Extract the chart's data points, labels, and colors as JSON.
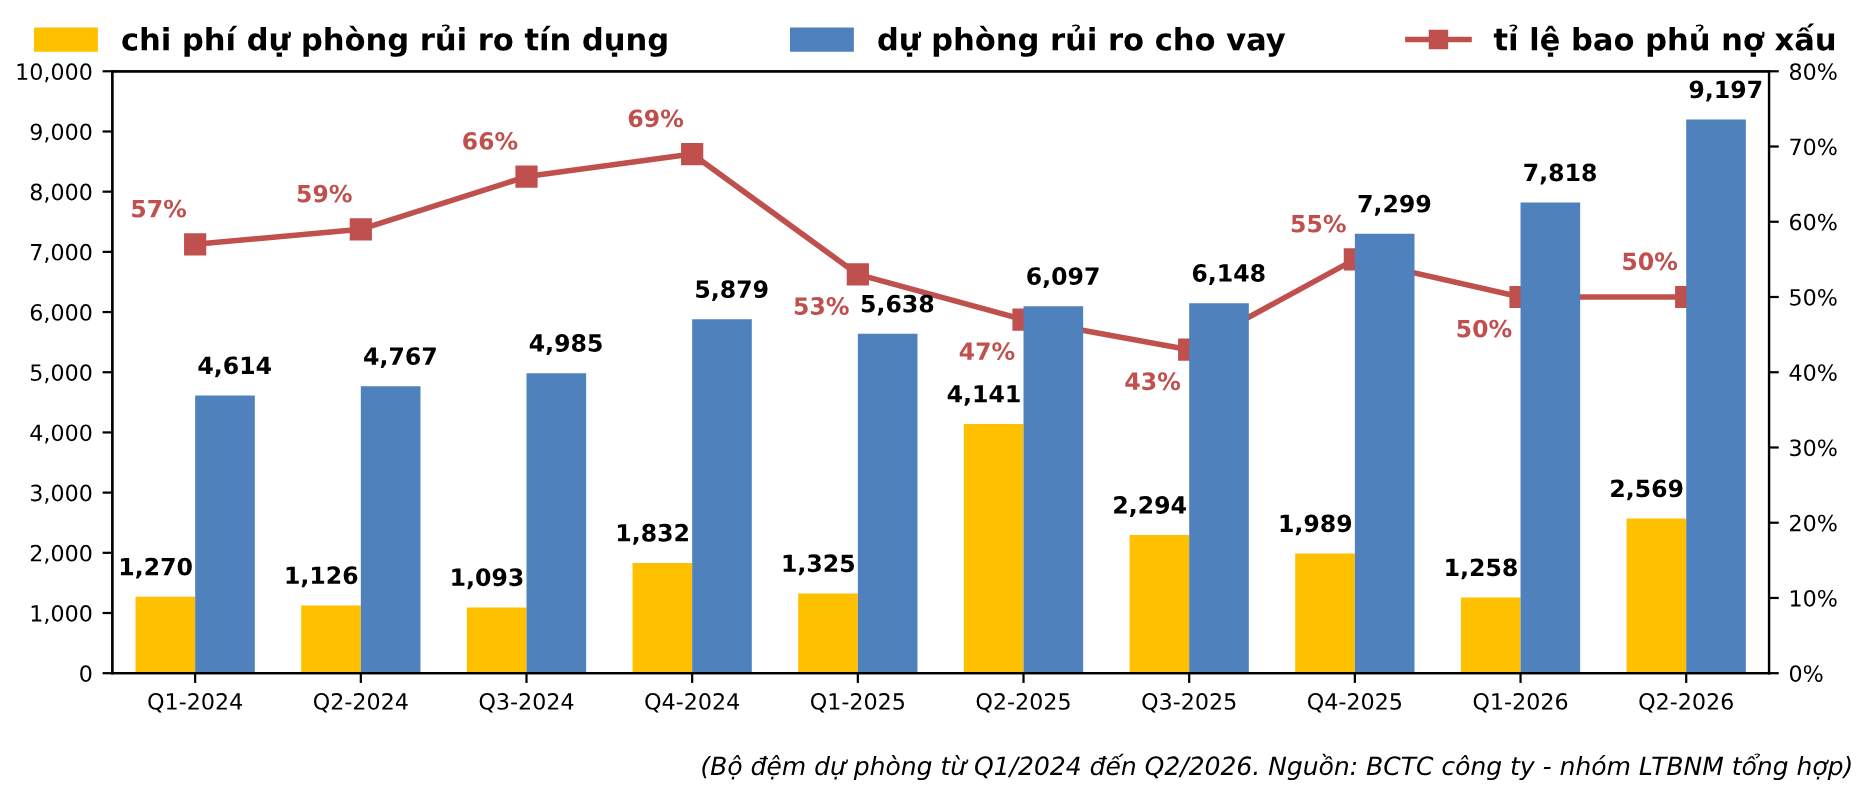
{
  "chart_data": {
    "type": "bar",
    "categories": [
      "Q1-2024",
      "Q2-2024",
      "Q3-2024",
      "Q4-2024",
      "Q1-2025",
      "Q2-2025",
      "Q3-2025",
      "Q4-2025",
      "Q1-2026",
      "Q2-2026"
    ],
    "series": [
      {
        "name": "chi phí dự phòng rủi ro tín dụng",
        "color": "#ffc000",
        "values": [
          1270,
          1126,
          1093,
          1832,
          1325,
          4141,
          2294,
          1989,
          1258,
          2569
        ],
        "value_labels": [
          "1,270",
          "1,126",
          "1,093",
          "1,832",
          "1,325",
          "4,141",
          "2,294",
          "1,989",
          "1,258",
          "2,569"
        ]
      },
      {
        "name": "dự phòng rủi ro cho vay",
        "color": "#4f81bd",
        "values": [
          4614,
          4767,
          4985,
          5879,
          5638,
          6097,
          6148,
          7299,
          7818,
          9197
        ],
        "value_labels": [
          "4,614",
          "4,767",
          "4,985",
          "5,879",
          "5,638",
          "6,097",
          "6,148",
          "7,299",
          "7,818",
          "9,197"
        ]
      },
      {
        "name": "tỉ lệ bao phủ nợ xấu",
        "type": "line",
        "axis": "y2",
        "color": "#c0504d",
        "marker": "square",
        "values": [
          57,
          59,
          66,
          69,
          53,
          47,
          43,
          55,
          50,
          50
        ],
        "value_labels": [
          "57%",
          "59%",
          "66%",
          "69%",
          "53%",
          "47%",
          "43%",
          "55%",
          "50%",
          "50%"
        ]
      }
    ],
    "ylim": [
      0,
      10000
    ],
    "yticks": [
      0,
      {
        "value": 1000,
        "label": "1,000"
      },
      {
        "value": 2000,
        "label": "2,000"
      },
      {
        "value": 3000,
        "label": "3,000"
      },
      {
        "value": 4000,
        "label": "4,000"
      },
      {
        "value": 5000,
        "label": "5,000"
      },
      {
        "value": 6000,
        "label": "6,000"
      },
      {
        "value": 7000,
        "label": "7,000"
      },
      {
        "value": 8000,
        "label": "8,000"
      },
      {
        "value": 9000,
        "label": "9,000"
      },
      {
        "value": 10000,
        "label": "10,000"
      }
    ],
    "y2lim": [
      0,
      80
    ],
    "y2ticks": [
      {
        "value": 0,
        "label": "0%"
      },
      {
        "value": 10,
        "label": "10%"
      },
      {
        "value": 20,
        "label": "20%"
      },
      {
        "value": 30,
        "label": "30%"
      },
      {
        "value": 40,
        "label": "40%"
      },
      {
        "value": 50,
        "label": "50%"
      },
      {
        "value": 60,
        "label": "60%"
      },
      {
        "value": 70,
        "label": "70%"
      },
      {
        "value": 80,
        "label": "80%"
      }
    ],
    "legend": "top",
    "grid": false,
    "annotations": [
      "(Bộ đệm dự phòng từ Q1/2024 đến Q2/2026. Nguồn: BCTC công ty - nhóm LTBNM tổng hợp)"
    ]
  }
}
